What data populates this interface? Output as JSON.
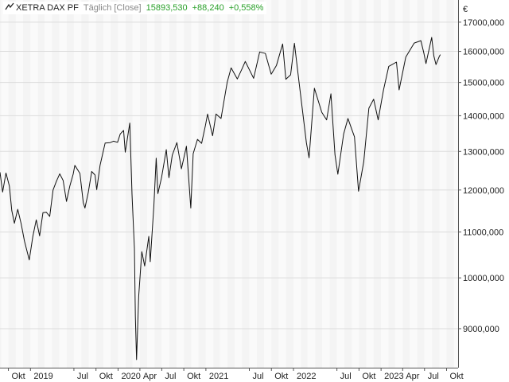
{
  "header": {
    "icon": "line-chart-icon",
    "instrument": "XETRA DAX PF",
    "range": "Täglich [Close]",
    "last": "15893,530",
    "change": "+88,240",
    "change_pct": "+0,558%"
  },
  "currency": "€",
  "colors": {
    "line": "#111111",
    "band_a": "#f4f4f4",
    "band_b": "#fafafa",
    "grid": "#dcdcdc",
    "axis": "#555555",
    "positive": "#2aa02a"
  },
  "chart_data": {
    "type": "line",
    "scale": "log",
    "grid": true,
    "ylim": [
      8300,
      17800
    ],
    "x_ticks": [
      {
        "date": "2018-10",
        "label": "Okt"
      },
      {
        "date": "2019-01",
        "label": "2019"
      },
      {
        "date": "2019-07",
        "label": "Jul"
      },
      {
        "date": "2019-10",
        "label": "Okt"
      },
      {
        "date": "2020-01",
        "label": "2020"
      },
      {
        "date": "2020-04",
        "label": "Apr"
      },
      {
        "date": "2020-07",
        "label": "Jul"
      },
      {
        "date": "2020-10",
        "label": "Okt"
      },
      {
        "date": "2021-01",
        "label": "2021"
      },
      {
        "date": "2021-07",
        "label": "Jul"
      },
      {
        "date": "2021-10",
        "label": "Okt"
      },
      {
        "date": "2022-01",
        "label": "2022"
      },
      {
        "date": "2022-07",
        "label": "Jul"
      },
      {
        "date": "2022-10",
        "label": "Okt"
      },
      {
        "date": "2023-01",
        "label": "2023"
      },
      {
        "date": "2023-04",
        "label": "Apr"
      },
      {
        "date": "2023-07",
        "label": "Jul"
      },
      {
        "date": "2023-10",
        "label": "Okt"
      }
    ],
    "y_ticks": [
      {
        "value": 9000,
        "label": "9000,000"
      },
      {
        "value": 10000,
        "label": "10000,000"
      },
      {
        "value": 11000,
        "label": "11000,000"
      },
      {
        "value": 12000,
        "label": "12000,000"
      },
      {
        "value": 13000,
        "label": "13000,000"
      },
      {
        "value": 14000,
        "label": "14000,000"
      },
      {
        "value": 15000,
        "label": "15000,000"
      },
      {
        "value": 16000,
        "label": "16000,000"
      },
      {
        "value": 17000,
        "label": "17000,000"
      }
    ],
    "series": [
      {
        "points": [
          [
            "2018-08-27",
            12450
          ],
          [
            "2018-09-07",
            11950
          ],
          [
            "2018-09-21",
            12430
          ],
          [
            "2018-10-05",
            12100
          ],
          [
            "2018-10-15",
            11500
          ],
          [
            "2018-10-26",
            11200
          ],
          [
            "2018-11-09",
            11530
          ],
          [
            "2018-11-23",
            11190
          ],
          [
            "2018-12-07",
            10790
          ],
          [
            "2018-12-27",
            10380
          ],
          [
            "2019-01-11",
            10900
          ],
          [
            "2019-01-25",
            11280
          ],
          [
            "2019-02-08",
            10910
          ],
          [
            "2019-02-22",
            11450
          ],
          [
            "2019-03-08",
            11460
          ],
          [
            "2019-03-22",
            11360
          ],
          [
            "2019-04-05",
            12000
          ],
          [
            "2019-04-19",
            12220
          ],
          [
            "2019-05-03",
            12410
          ],
          [
            "2019-05-17",
            12240
          ],
          [
            "2019-05-31",
            11720
          ],
          [
            "2019-06-14",
            12100
          ],
          [
            "2019-06-28",
            12400
          ],
          [
            "2019-07-05",
            12630
          ],
          [
            "2019-07-26",
            12420
          ],
          [
            "2019-08-09",
            11690
          ],
          [
            "2019-08-16",
            11560
          ],
          [
            "2019-08-30",
            11940
          ],
          [
            "2019-09-13",
            12470
          ],
          [
            "2019-09-27",
            12380
          ],
          [
            "2019-10-04",
            12010
          ],
          [
            "2019-10-18",
            12630
          ],
          [
            "2019-11-08",
            13230
          ],
          [
            "2019-11-29",
            13240
          ],
          [
            "2019-12-13",
            13280
          ],
          [
            "2019-12-30",
            13250
          ],
          [
            "2020-01-10",
            13480
          ],
          [
            "2020-01-24",
            13580
          ],
          [
            "2020-01-31",
            12980
          ],
          [
            "2020-02-19",
            13790
          ],
          [
            "2020-02-28",
            11890
          ],
          [
            "2020-03-09",
            10630
          ],
          [
            "2020-03-13",
            9230
          ],
          [
            "2020-03-18",
            8440
          ],
          [
            "2020-03-27",
            9630
          ],
          [
            "2020-04-09",
            10560
          ],
          [
            "2020-04-21",
            10250
          ],
          [
            "2020-05-08",
            10900
          ],
          [
            "2020-05-14",
            10340
          ],
          [
            "2020-05-29",
            11590
          ],
          [
            "2020-06-08",
            12820
          ],
          [
            "2020-06-15",
            11910
          ],
          [
            "2020-06-30",
            12310
          ],
          [
            "2020-07-20",
            13050
          ],
          [
            "2020-07-31",
            12310
          ],
          [
            "2020-08-14",
            12900
          ],
          [
            "2020-09-02",
            13240
          ],
          [
            "2020-09-21",
            12540
          ],
          [
            "2020-10-12",
            13140
          ],
          [
            "2020-10-30",
            11560
          ],
          [
            "2020-11-09",
            12940
          ],
          [
            "2020-11-27",
            13330
          ],
          [
            "2020-12-14",
            13220
          ],
          [
            "2020-12-30",
            13720
          ],
          [
            "2021-01-08",
            14050
          ],
          [
            "2021-01-29",
            13430
          ],
          [
            "2021-02-12",
            14050
          ],
          [
            "2021-03-05",
            13920
          ],
          [
            "2021-03-31",
            15010
          ],
          [
            "2021-04-16",
            15460
          ],
          [
            "2021-05-12",
            15110
          ],
          [
            "2021-05-31",
            15420
          ],
          [
            "2021-06-14",
            15670
          ],
          [
            "2021-07-19",
            15130
          ],
          [
            "2021-08-13",
            15980
          ],
          [
            "2021-09-06",
            15930
          ],
          [
            "2021-09-30",
            15260
          ],
          [
            "2021-10-22",
            15540
          ],
          [
            "2021-11-17",
            16250
          ],
          [
            "2021-11-30",
            15100
          ],
          [
            "2021-12-20",
            15240
          ],
          [
            "2022-01-05",
            16270
          ],
          [
            "2022-01-24",
            15010
          ],
          [
            "2022-02-24",
            13230
          ],
          [
            "2022-03-07",
            12830
          ],
          [
            "2022-03-29",
            14820
          ],
          [
            "2022-04-29",
            14100
          ],
          [
            "2022-05-19",
            13880
          ],
          [
            "2022-06-06",
            14650
          ],
          [
            "2022-06-23",
            12910
          ],
          [
            "2022-07-05",
            12400
          ],
          [
            "2022-07-29",
            13480
          ],
          [
            "2022-08-16",
            13920
          ],
          [
            "2022-09-12",
            13400
          ],
          [
            "2022-09-29",
            11970
          ],
          [
            "2022-10-21",
            12730
          ],
          [
            "2022-11-11",
            14220
          ],
          [
            "2022-12-01",
            14490
          ],
          [
            "2022-12-20",
            13880
          ],
          [
            "2023-01-11",
            14770
          ],
          [
            "2023-02-02",
            15510
          ],
          [
            "2023-03-06",
            15650
          ],
          [
            "2023-03-17",
            14770
          ],
          [
            "2023-04-14",
            15810
          ],
          [
            "2023-05-19",
            16280
          ],
          [
            "2023-06-16",
            16360
          ],
          [
            "2023-06-28",
            15950
          ],
          [
            "2023-07-07",
            15600
          ],
          [
            "2023-07-31",
            16470
          ],
          [
            "2023-08-09",
            15850
          ],
          [
            "2023-08-18",
            15570
          ],
          [
            "2023-09-01",
            15840
          ],
          [
            "2023-09-05",
            15893
          ]
        ]
      }
    ]
  }
}
